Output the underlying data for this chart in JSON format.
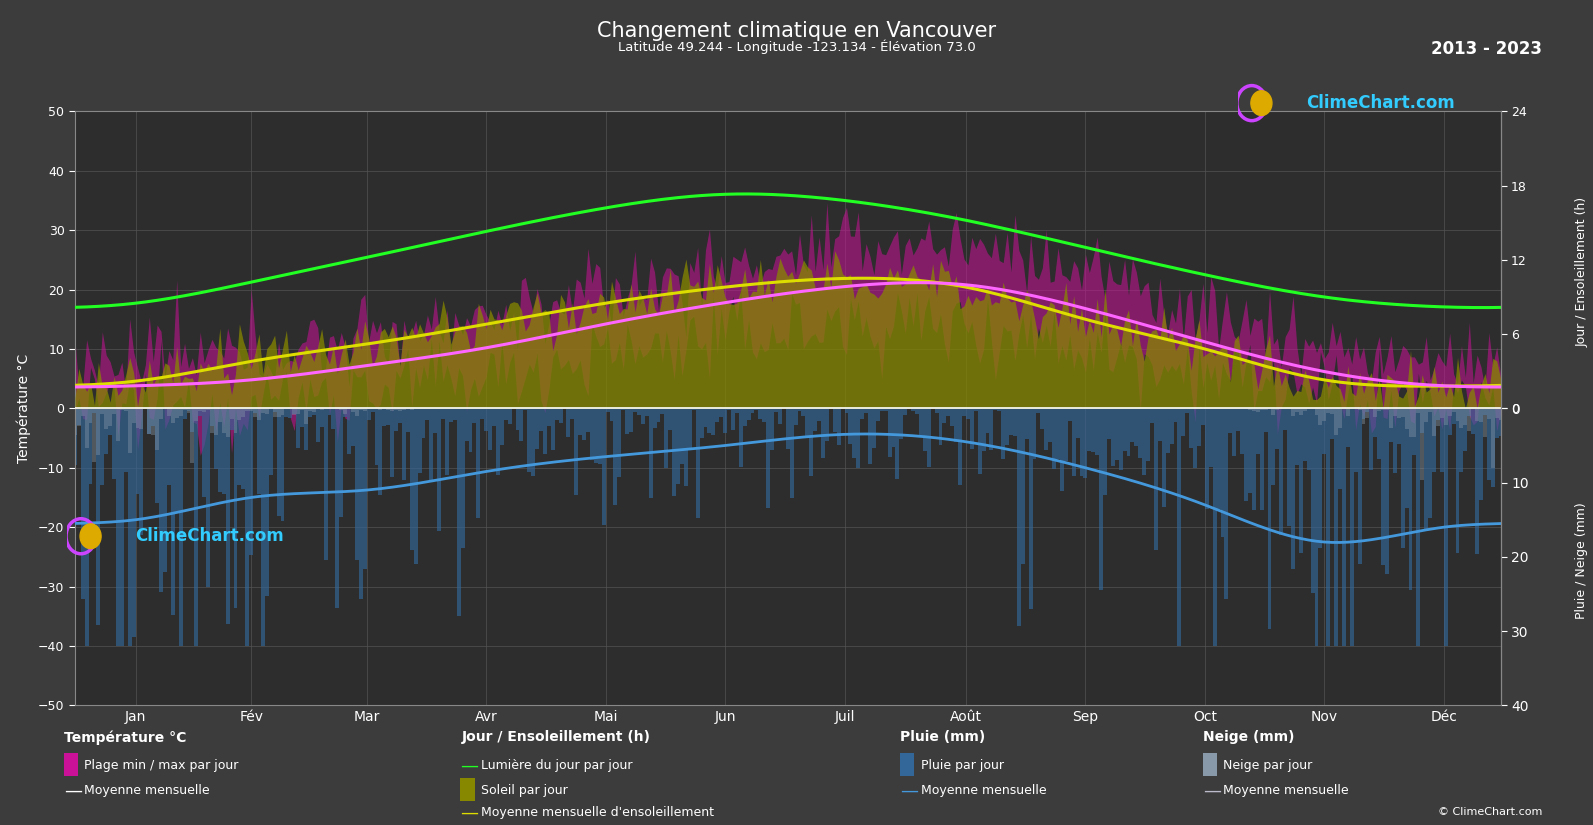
{
  "title": "Changement climatique en Vancouver",
  "subtitle": "Latitude 49.244 - Longitude -123.134 - Élévation 73.0",
  "year_range": "2013 - 2023",
  "background_color": "#3c3c3c",
  "plot_background_color": "#2d2d2d",
  "grid_color": "#555555",
  "text_color": "#ffffff",
  "months_labels": [
    "Jan",
    "Fév",
    "Mar",
    "Avr",
    "Mai",
    "Jun",
    "Juil",
    "Août",
    "Sep",
    "Oct",
    "Nov",
    "Déc"
  ],
  "temp_yticks": [
    -50,
    -40,
    -30,
    -20,
    -10,
    0,
    10,
    20,
    30,
    40,
    50
  ],
  "right_sun_ticks": [
    0,
    6,
    12,
    18,
    24
  ],
  "right_rain_ticks": [
    0,
    10,
    20,
    30,
    40
  ],
  "mean_temp_monthly": [
    3.8,
    4.8,
    7.2,
    10.2,
    14.2,
    17.8,
    20.5,
    20.8,
    16.8,
    11.2,
    6.2,
    3.8
  ],
  "temp_min_monthly": [
    0.0,
    1.0,
    3.0,
    5.5,
    9.0,
    12.0,
    14.0,
    14.0,
    10.5,
    6.5,
    2.0,
    0.5
  ],
  "temp_max_monthly": [
    7.5,
    9.0,
    12.0,
    15.5,
    19.5,
    23.5,
    27.0,
    27.5,
    23.0,
    16.0,
    10.5,
    7.5
  ],
  "daylight_monthly": [
    8.5,
    10.2,
    12.2,
    14.3,
    16.2,
    17.3,
    16.8,
    15.2,
    13.0,
    10.8,
    9.0,
    8.2
  ],
  "sunshine_monthly": [
    2.2,
    3.8,
    5.2,
    6.8,
    8.5,
    9.8,
    10.5,
    9.8,
    7.2,
    4.8,
    2.3,
    1.8
  ],
  "rain_monthly_mm": [
    15.0,
    12.0,
    11.0,
    8.5,
    6.5,
    5.0,
    3.5,
    4.5,
    8.0,
    13.0,
    18.0,
    16.0
  ],
  "snow_monthly_mm": [
    2.5,
    1.0,
    0.2,
    0.0,
    0.0,
    0.0,
    0.0,
    0.0,
    0.0,
    0.05,
    0.8,
    2.8
  ],
  "sun_scale": 50.0,
  "sun_max": 24.0,
  "rain_scale": 50.0,
  "rain_max": 40.0
}
